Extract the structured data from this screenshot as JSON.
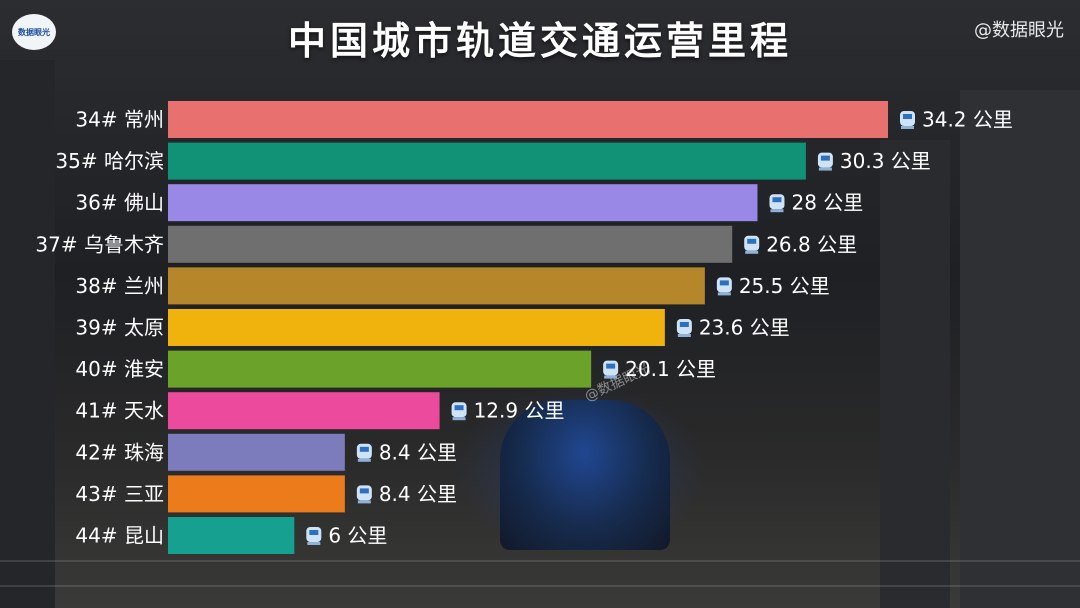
{
  "title": "中国城市轨道交通运营里程",
  "logo_text": "数据眼光",
  "watermark": "@数据眼光",
  "mid_watermark": "@数据眼光",
  "unit": "公里",
  "icon": "train-icon",
  "chart_data": {
    "type": "bar",
    "orientation": "horizontal",
    "title": "中国城市轨道交通运营里程",
    "categories": [
      "34# 常州",
      "35# 哈尔滨",
      "36# 佛山",
      "37# 乌鲁木齐",
      "38# 兰州",
      "39# 太原",
      "40# 淮安",
      "41# 天水",
      "42# 珠海",
      "43# 三亚",
      "44# 昆山"
    ],
    "values": [
      34.2,
      30.3,
      28,
      26.8,
      25.5,
      23.6,
      20.1,
      12.9,
      8.4,
      8.4,
      6
    ],
    "value_labels": [
      "34.2 公里",
      "30.3 公里",
      "28 公里",
      "26.8 公里",
      "25.5 公里",
      "23.6 公里",
      "20.1 公里",
      "12.9 公里",
      "8.4 公里",
      "8.4 公里",
      "6 公里"
    ],
    "colors": [
      "#e8706e",
      "#119277",
      "#9a88e6",
      "#6f6f6f",
      "#b5862a",
      "#f0b20c",
      "#6aa22a",
      "#ec4a9c",
      "#7c7cbd",
      "#ec7b1c",
      "#16a090"
    ],
    "xlim": [
      0,
      34.2
    ],
    "grid": false,
    "legend": "none"
  }
}
